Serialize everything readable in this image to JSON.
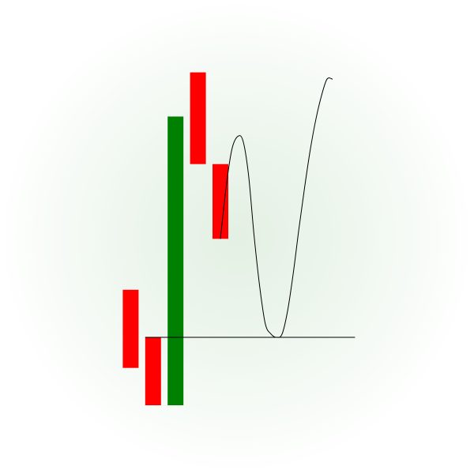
{
  "chart_data": {
    "type": "bar",
    "grid": false,
    "legend": "none",
    "xlim": [
      0,
      12
    ],
    "ylim": [
      -1.0,
      4.0
    ],
    "colors": {
      "down": "#ff0000",
      "up": "#008000",
      "line": "#000000"
    },
    "boxes": [
      {
        "x": 1,
        "start": 0.7,
        "end": -0.45,
        "direction": "down"
      },
      {
        "x": 2,
        "start": 0.0,
        "end": -1.0,
        "direction": "down"
      },
      {
        "x": 3,
        "start": -1.0,
        "end": 3.25,
        "direction": "up"
      },
      {
        "x": 4,
        "start": 3.9,
        "end": 2.55,
        "direction": "down"
      },
      {
        "x": 5,
        "start": 2.55,
        "end": 1.45,
        "direction": "down"
      }
    ],
    "baseline": {
      "y": 0.0,
      "x_from": 2,
      "x_to": 11
    },
    "curve": {
      "x": [
        5.0,
        5.25,
        5.5,
        5.75,
        6.0,
        6.25,
        6.5,
        6.75,
        7.0,
        7.25,
        7.5,
        7.75,
        8.0,
        8.25,
        8.5,
        8.75,
        9.0,
        9.25,
        9.5,
        9.75,
        10.0
      ],
      "y": [
        1.45,
        2.2,
        2.75,
        2.95,
        2.9,
        2.4,
        1.5,
        0.75,
        0.2,
        0.05,
        0.0,
        0.05,
        0.4,
        0.95,
        1.6,
        2.2,
        2.75,
        3.2,
        3.55,
        3.8,
        3.8
      ]
    }
  }
}
